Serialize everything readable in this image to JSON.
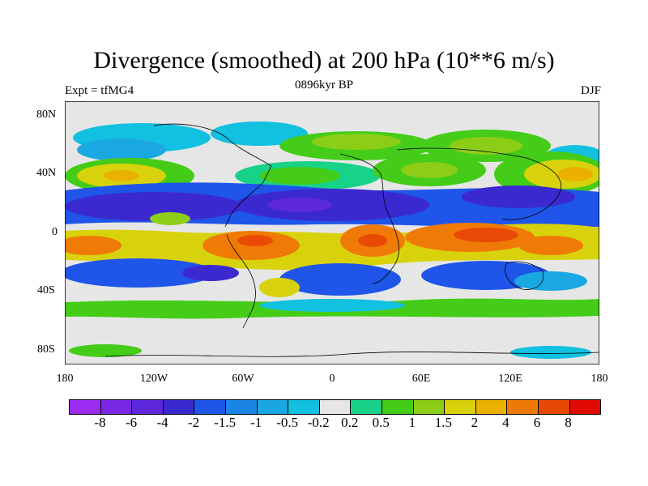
{
  "title": "Divergence (smoothed) at 200 hPa (10**6 m/s)",
  "subtitle_left": "Expt = tfMG4",
  "subtitle_center": "0896kyr BP",
  "subtitle_right": "DJF",
  "lat_labels": [
    "80N",
    "40N",
    "0",
    "40S",
    "80S"
  ],
  "lon_labels": [
    "180",
    "120W",
    "60W",
    "0",
    "60E",
    "120E",
    "180"
  ],
  "legend": {
    "labels": [
      "-8",
      "-6",
      "-4",
      "-2",
      "-1.5",
      "-1",
      "-0.5",
      "-0.2",
      "0.2",
      "0.5",
      "1",
      "1.5",
      "2",
      "4",
      "6",
      "8"
    ],
    "colors": [
      "#9b2bf0",
      "#7a28e6",
      "#5d27dc",
      "#3b29d0",
      "#1f55e8",
      "#1c86e6",
      "#1aa8e2",
      "#12c0e0",
      "#e6e6e6",
      "#18d28a",
      "#44cc18",
      "#8ccd18",
      "#d8d20c",
      "#eab100",
      "#f07a06",
      "#e84a05",
      "#e00a05"
    ]
  }
}
